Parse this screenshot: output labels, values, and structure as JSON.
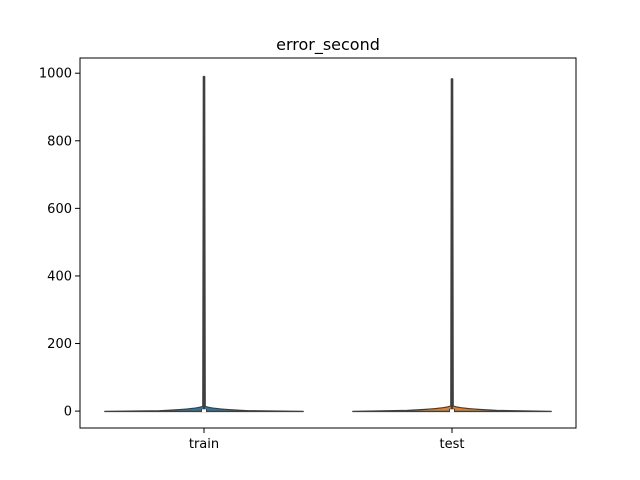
{
  "chart_data": {
    "type": "violin",
    "title": "error_second",
    "xlabel": "",
    "ylabel": "",
    "categories": [
      "train",
      "test"
    ],
    "ylim": [
      -50,
      1045
    ],
    "yticks": [
      0,
      200,
      400,
      600,
      800,
      1000
    ],
    "yticklabels": [
      "0",
      "200",
      "400",
      "600",
      "800",
      "1000"
    ],
    "grid": false,
    "legend": "none",
    "series": [
      {
        "category": "train",
        "color": "#3274a1",
        "min": -1,
        "max": 990,
        "median": 1,
        "q1": 0,
        "q3": 3,
        "max_half_width_fraction": 0.4
      },
      {
        "category": "test",
        "color": "#e1812c",
        "min": -1,
        "max": 983,
        "median": 1,
        "q1": 0,
        "q3": 4,
        "max_half_width_fraction": 0.4
      }
    ]
  }
}
